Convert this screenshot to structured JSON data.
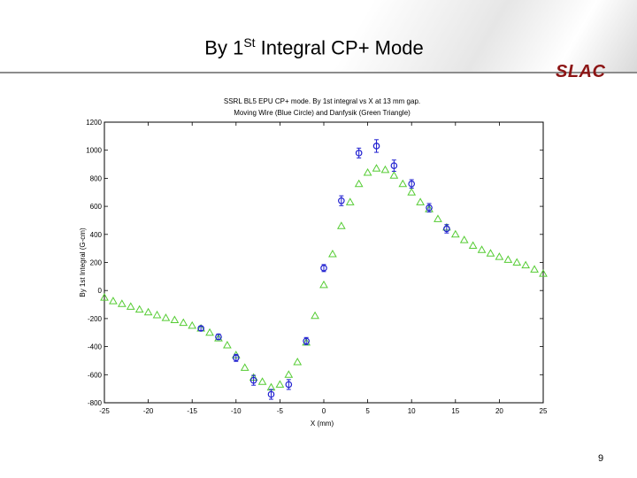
{
  "slide": {
    "title_prefix": "By 1",
    "title_sup": "St",
    "title_suffix": " Integral CP+ Mode",
    "logo_text": "SLAC",
    "page_number": "9"
  },
  "colors": {
    "logo": "#8c1515",
    "moving_wire": "#1f1fd0",
    "danfysik": "#55cc33"
  },
  "chart_data": {
    "type": "scatter",
    "title_line1": "SSRL BL5 EPU CP+ mode.  By 1st integral vs X at 13 mm gap.",
    "title_line2": "Moving Wire (Blue Circle) and Danfysik (Green Triangle)",
    "xlabel": "X (mm)",
    "ylabel": "By 1st Integral (G-cm)",
    "xlim": [
      -25,
      25
    ],
    "ylim": [
      -800,
      1200
    ],
    "xticks": [
      -25,
      -20,
      -15,
      -10,
      -5,
      0,
      5,
      10,
      15,
      20,
      25
    ],
    "yticks": [
      -800,
      -600,
      -400,
      -200,
      0,
      200,
      400,
      600,
      800,
      1000,
      1200
    ],
    "grid": false,
    "series": [
      {
        "name": "Moving Wire",
        "marker": "circle",
        "x": [
          -14,
          -12,
          -10,
          -8,
          -6,
          -4,
          -2,
          0,
          2,
          4,
          6,
          8,
          10,
          12,
          14
        ],
        "y": [
          -270,
          -330,
          -480,
          -640,
          -740,
          -670,
          -360,
          160,
          640,
          980,
          1030,
          890,
          760,
          590,
          440
        ],
        "err": [
          15,
          20,
          25,
          35,
          35,
          35,
          25,
          25,
          35,
          35,
          45,
          40,
          30,
          30,
          30
        ]
      },
      {
        "name": "Danfysik",
        "marker": "triangle",
        "x": [
          -25,
          -24,
          -23,
          -22,
          -21,
          -20,
          -19,
          -18,
          -17,
          -16,
          -15,
          -14,
          -13,
          -12,
          -11,
          -10,
          -9,
          -8,
          -7,
          -6,
          -5,
          -4,
          -3,
          -2,
          -1,
          0,
          1,
          2,
          3,
          4,
          5,
          6,
          7,
          8,
          9,
          10,
          11,
          12,
          13,
          14,
          15,
          16,
          17,
          18,
          19,
          20,
          21,
          22,
          23,
          24,
          25
        ],
        "y": [
          -50,
          -75,
          -95,
          -115,
          -135,
          -155,
          -175,
          -195,
          -210,
          -230,
          -250,
          -270,
          -300,
          -340,
          -390,
          -460,
          -550,
          -620,
          -650,
          -690,
          -670,
          -600,
          -510,
          -370,
          -180,
          40,
          260,
          460,
          630,
          760,
          840,
          870,
          860,
          820,
          760,
          700,
          630,
          580,
          510,
          450,
          400,
          360,
          320,
          290,
          265,
          240,
          220,
          200,
          180,
          150,
          120
        ]
      }
    ]
  }
}
